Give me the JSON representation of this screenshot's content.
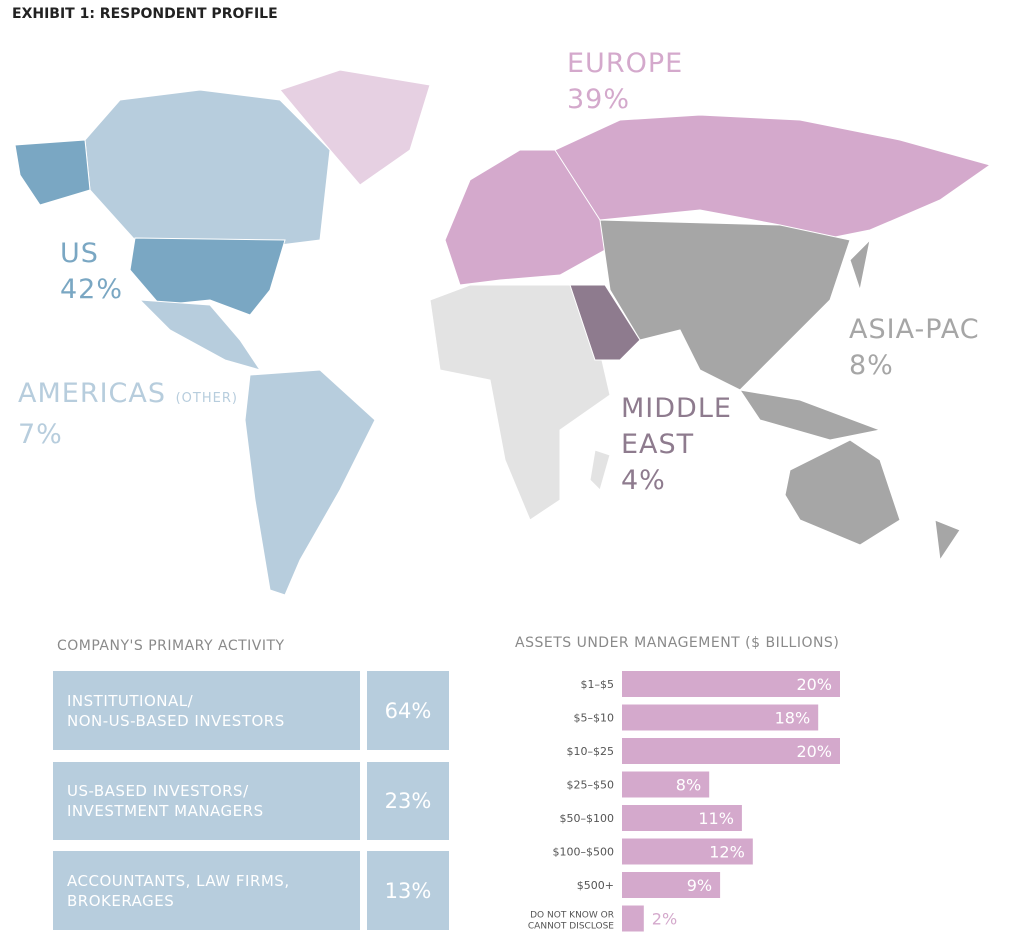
{
  "title": "EXHIBIT 1: RESPONDENT PROFILE",
  "map": {
    "regions": [
      {
        "name": "EUROPE",
        "share": "39%"
      },
      {
        "name": "US",
        "share": "42%"
      },
      {
        "name": "AMERICAS",
        "note": "(OTHER)",
        "share": "7%"
      },
      {
        "name": "ASIA-PAC",
        "share": "8%"
      },
      {
        "name": "MIDDLE\nEAST",
        "share": "4%"
      }
    ]
  },
  "activity": {
    "title": "COMPANY'S PRIMARY ACTIVITY",
    "rows": [
      [
        "INSTITUTIONAL/\nNON-US-BASED INVESTORS",
        "64%"
      ],
      [
        "US-BASED INVESTORS/\nINVESTMENT MANAGERS",
        "23%"
      ],
      [
        "ACCOUNTANTS, LAW FIRMS,\nBROKERAGES",
        "13%"
      ]
    ]
  },
  "chart_data": {
    "type": "bar",
    "orientation": "horizontal",
    "title": "ASSETS UNDER MANAGEMENT ($ BILLIONS)",
    "categories": [
      "$1–$5",
      "$5–$10",
      "$10–$25",
      "$25–$50",
      "$50–$100",
      "$100–$500",
      "$500+",
      "DO NOT KNOW OR\nCANNOT DISCLOSE"
    ],
    "values": [
      20,
      18,
      20,
      8,
      11,
      12,
      9,
      2
    ],
    "value_labels": [
      "20%",
      "18%",
      "20%",
      "8%",
      "11%",
      "12%",
      "9%",
      "2%"
    ],
    "color": "#d4a9cc"
  }
}
